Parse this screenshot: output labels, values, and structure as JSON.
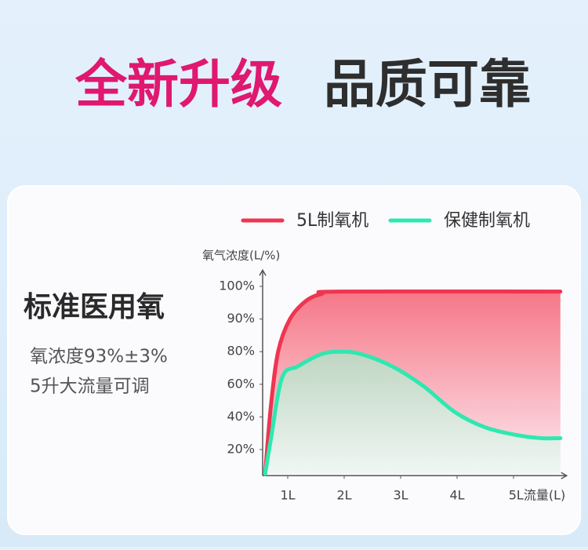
{
  "headline": {
    "highlight": "全新升级",
    "rest": "品质可靠"
  },
  "panel": {
    "title": "标准医用氧",
    "lines": [
      "氧浓度93%±3%",
      "5升大流量可调"
    ]
  },
  "chart_data": {
    "type": "line",
    "y_label": "氧气浓度(L/%)",
    "xlim": [
      0.55,
      5.83
    ],
    "xticks": [
      {
        "value": 1,
        "label": "1L"
      },
      {
        "value": 2,
        "label": "2L"
      },
      {
        "value": 3,
        "label": "3L"
      },
      {
        "value": 4,
        "label": "4L"
      },
      {
        "value": 5,
        "label": "5L流量(L)"
      }
    ],
    "ylim": [
      4,
      105
    ],
    "yticks": [
      {
        "value": 20,
        "label": "20%"
      },
      {
        "value": 40,
        "label": "40%"
      },
      {
        "value": 60,
        "label": "60%"
      },
      {
        "value": 80,
        "label": "80%"
      },
      {
        "value": 90,
        "label": "90%"
      },
      {
        "value": 100,
        "label": "100%"
      }
    ],
    "series": [
      {
        "name": "5L制氧机",
        "color": "#ef3550",
        "x": [
          0.6,
          0.7,
          0.83,
          1.04,
          1.32,
          1.6,
          1.94,
          5.83
        ],
        "values": [
          5,
          46,
          80,
          90,
          95.5,
          97.7,
          98.4,
          98.4
        ]
      },
      {
        "name": "保健制氧机",
        "color": "#2ee8b0",
        "x": [
          0.6,
          0.7,
          0.9,
          1.18,
          1.6,
          1.94,
          2.3,
          2.85,
          3.4,
          3.96,
          4.5,
          5.07,
          5.49,
          5.83
        ],
        "values": [
          5,
          26,
          64,
          71,
          78.5,
          80,
          78.5,
          71,
          59,
          43,
          33.6,
          28.8,
          27,
          27
        ]
      }
    ]
  }
}
